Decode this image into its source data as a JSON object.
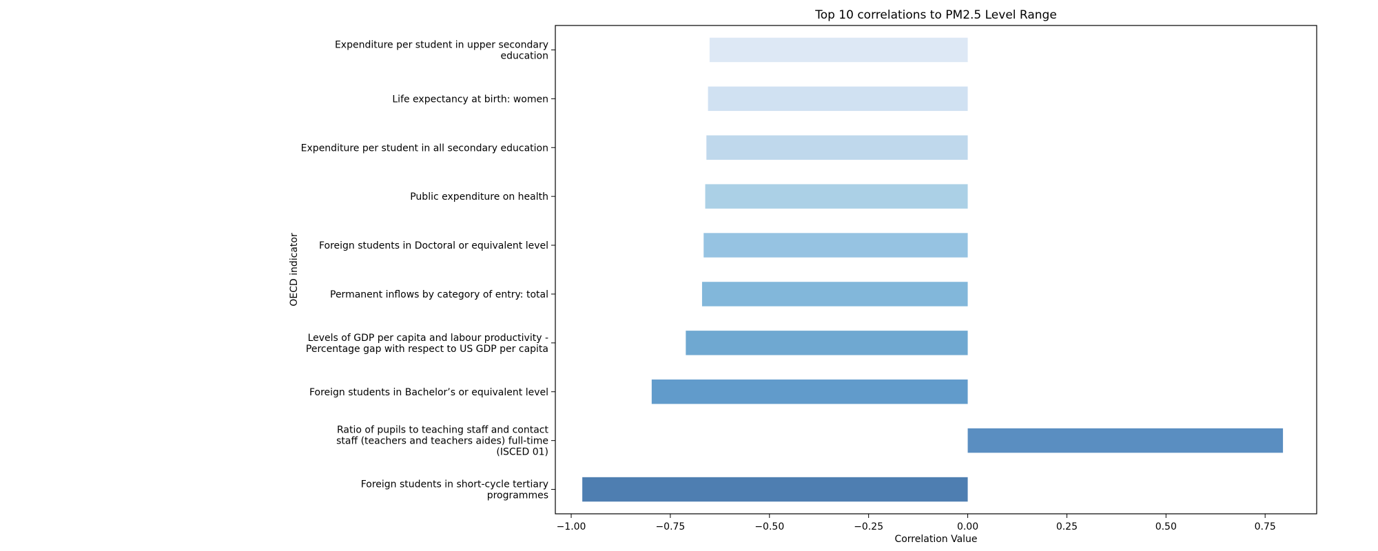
{
  "chart_data": {
    "type": "bar",
    "orientation": "horizontal",
    "title": "Top 10 correlations to PM2.5 Level Range",
    "xlabel": "Correlation Value",
    "ylabel": "OECD indicator",
    "xlim": [
      -1.04,
      0.88
    ],
    "xticks": [
      -1.0,
      -0.75,
      -0.5,
      -0.25,
      0.0,
      0.25,
      0.5,
      0.75
    ],
    "xtick_labels": [
      "−1.00",
      "−0.75",
      "−0.50",
      "−0.25",
      "0.00",
      "0.25",
      "0.50",
      "0.75"
    ],
    "grid": false,
    "legend": false,
    "categories": [
      "Expenditure per student in upper secondary education",
      "Life expectancy at birth: women",
      "Expenditure per student in all secondary education",
      "Public expenditure on health",
      "Foreign students in Doctoral or equivalent level",
      "Permanent inflows by category of entry: total",
      "Levels of GDP per capita and labour productivity - Percentage gap with respect to US GDP per capita",
      "Foreign students in Bachelor’s or equivalent level",
      "Ratio of pupils to teaching staff and contact staff (teachers and teachers aides) full-time (ISCED 01)",
      "Foreign students in short-cycle tertiary programmes"
    ],
    "category_lines": [
      [
        "Expenditure per student in upper secondary",
        "education"
      ],
      [
        "Life expectancy at birth: women"
      ],
      [
        "Expenditure per student in all secondary education"
      ],
      [
        "Public expenditure on health"
      ],
      [
        "Foreign students in Doctoral or equivalent level"
      ],
      [
        "Permanent inflows by category of entry: total"
      ],
      [
        "Levels of GDP per capita and labour productivity -",
        "Percentage gap with respect to US GDP per capita"
      ],
      [
        "Foreign students in Bachelor’s or equivalent level"
      ],
      [
        "Ratio of pupils to teaching staff and contact",
        "staff (teachers and teachers aides) full-time",
        "(ISCED 01)"
      ],
      [
        "Foreign students in short-cycle tertiary",
        "programmes"
      ]
    ],
    "values": [
      -0.651,
      -0.655,
      -0.659,
      -0.662,
      -0.666,
      -0.67,
      -0.711,
      -0.797,
      0.795,
      -0.972
    ],
    "colors": [
      "#dde8f5",
      "#d0e1f2",
      "#bfd8ec",
      "#abd0e6",
      "#96c3e2",
      "#82b7da",
      "#6fa8d1",
      "#619bcb",
      "#5a8ec1",
      "#4e7eb1"
    ]
  }
}
